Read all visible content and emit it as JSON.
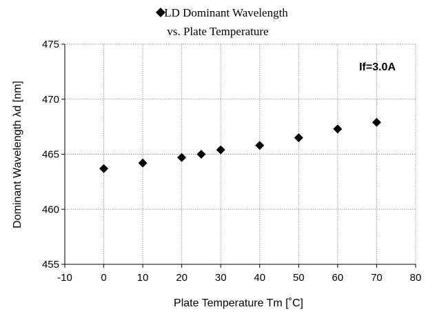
{
  "chart_data": {
    "type": "scatter",
    "title": "LD Dominant Wavelength",
    "title_marker": "diamond",
    "subtitle": "vs. Plate Temperature",
    "xlabel": "Plate Temperature Tm [˚C]",
    "ylabel": "Dominant Wavelength λd [nm]",
    "annotation": "If=3.0A",
    "xlim": [
      -10,
      80
    ],
    "ylim": [
      455,
      475
    ],
    "x_ticks": [
      -10,
      0,
      10,
      20,
      30,
      40,
      50,
      60,
      70,
      80
    ],
    "y_ticks": [
      455,
      460,
      465,
      470,
      475
    ],
    "grid": true,
    "marker": "diamond",
    "marker_color": "#000000",
    "series": [
      {
        "points": [
          {
            "x": 0,
            "y": 463.7
          },
          {
            "x": 10,
            "y": 464.2
          },
          {
            "x": 20,
            "y": 464.7
          },
          {
            "x": 25,
            "y": 465.0
          },
          {
            "x": 30,
            "y": 465.4
          },
          {
            "x": 40,
            "y": 465.8
          },
          {
            "x": 50,
            "y": 466.5
          },
          {
            "x": 60,
            "y": 467.3
          },
          {
            "x": 70,
            "y": 467.9
          }
        ]
      }
    ]
  }
}
